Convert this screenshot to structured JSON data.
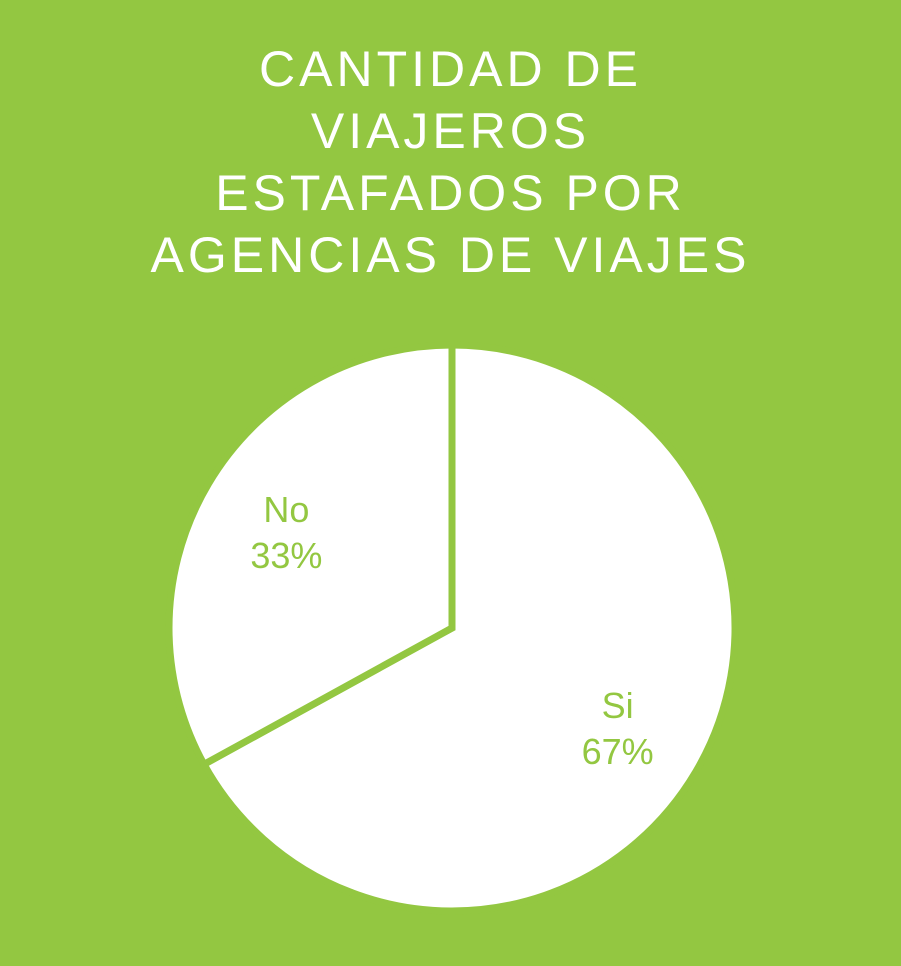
{
  "colors": {
    "background": "#93c741",
    "slice_fill": "#ffffff",
    "label": "#93c741",
    "title": "#ffffff"
  },
  "chart_data": {
    "type": "pie",
    "title_lines": [
      "CANTIDAD DE",
      "VIAJEROS",
      "ESTAFADOS POR",
      "AGENCIAS DE VIAJES"
    ],
    "start_angle_deg": 0,
    "direction": "clockwise",
    "slices": [
      {
        "label": "Si",
        "value": 67,
        "value_label": "67%"
      },
      {
        "label": "No",
        "value": 33,
        "value_label": "33%"
      }
    ]
  }
}
